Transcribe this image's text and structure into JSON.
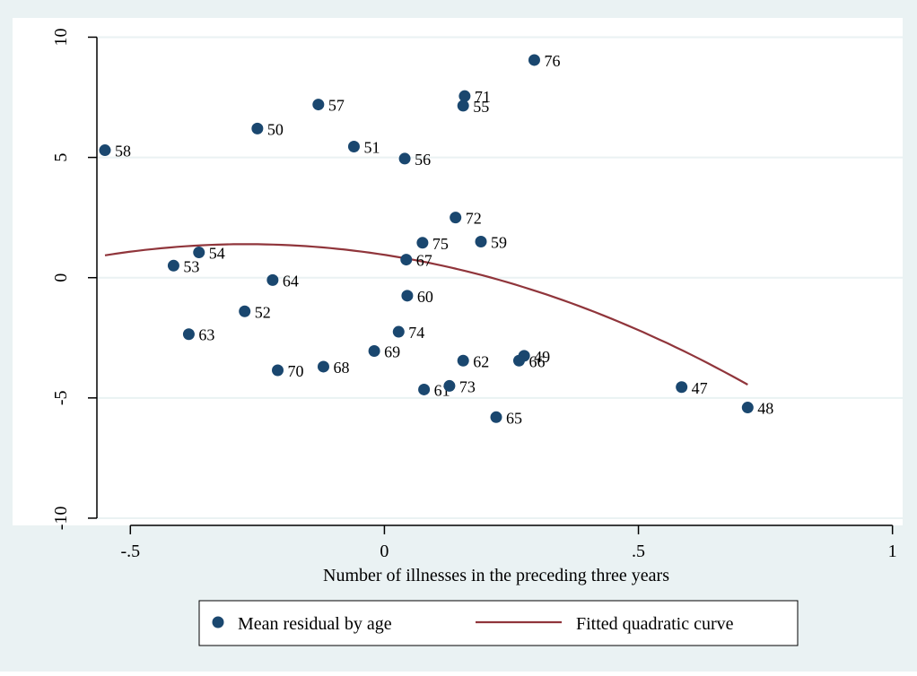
{
  "chart_data": {
    "type": "scatter",
    "xlabel": "Number of illnesses in the preceding three years",
    "ylabel": "",
    "xlim": [
      -0.58,
      1.02
    ],
    "ylim": [
      -10.3,
      10.8
    ],
    "xticks": [
      -0.5,
      0,
      0.5,
      1
    ],
    "xtick_labels": [
      "-.5",
      "0",
      ".5",
      "1"
    ],
    "yticks": [
      -10,
      -5,
      0,
      5,
      10
    ],
    "ytick_labels": [
      "-10",
      "-5",
      "0",
      "5",
      "10"
    ],
    "grid": true,
    "legend_position": "bottom",
    "series": [
      {
        "name": "Mean residual by age",
        "kind": "scatter",
        "color": "#1a476f",
        "points": [
          {
            "label": "47",
            "x": 0.585,
            "y": -4.55
          },
          {
            "label": "48",
            "x": 0.715,
            "y": -5.4
          },
          {
            "label": "49",
            "x": 0.275,
            "y": -3.25
          },
          {
            "label": "50",
            "x": -0.25,
            "y": 6.2
          },
          {
            "label": "51",
            "x": -0.06,
            "y": 5.45
          },
          {
            "label": "52",
            "x": -0.275,
            "y": -1.4
          },
          {
            "label": "53",
            "x": -0.415,
            "y": 0.5
          },
          {
            "label": "54",
            "x": -0.365,
            "y": 1.05
          },
          {
            "label": "55",
            "x": 0.155,
            "y": 7.15
          },
          {
            "label": "56",
            "x": 0.04,
            "y": 4.95
          },
          {
            "label": "57",
            "x": -0.13,
            "y": 7.2
          },
          {
            "label": "58",
            "x": -0.55,
            "y": 5.3
          },
          {
            "label": "59",
            "x": 0.19,
            "y": 1.5
          },
          {
            "label": "60",
            "x": 0.045,
            "y": -0.75
          },
          {
            "label": "61",
            "x": 0.078,
            "y": -4.65
          },
          {
            "label": "62",
            "x": 0.155,
            "y": -3.45
          },
          {
            "label": "63",
            "x": -0.385,
            "y": -2.35
          },
          {
            "label": "64",
            "x": -0.22,
            "y": -0.1
          },
          {
            "label": "65",
            "x": 0.22,
            "y": -5.8
          },
          {
            "label": "66",
            "x": 0.265,
            "y": -3.45
          },
          {
            "label": "67",
            "x": 0.043,
            "y": 0.75
          },
          {
            "label": "68",
            "x": -0.12,
            "y": -3.7
          },
          {
            "label": "69",
            "x": -0.02,
            "y": -3.05
          },
          {
            "label": "70",
            "x": -0.21,
            "y": -3.85
          },
          {
            "label": "71",
            "x": 0.158,
            "y": 7.55
          },
          {
            "label": "72",
            "x": 0.14,
            "y": 2.5
          },
          {
            "label": "73",
            "x": 0.128,
            "y": -4.5
          },
          {
            "label": "74",
            "x": 0.028,
            "y": -2.25
          },
          {
            "label": "75",
            "x": 0.075,
            "y": 1.45
          },
          {
            "label": "76",
            "x": 0.295,
            "y": 9.05
          }
        ]
      },
      {
        "name": "Fitted quadratic curve",
        "kind": "line",
        "color": "#90353b",
        "x_range": [
          -0.55,
          0.715
        ],
        "equation": {
          "a": 0.95,
          "b": -3.26,
          "c": -6.0
        }
      }
    ]
  }
}
